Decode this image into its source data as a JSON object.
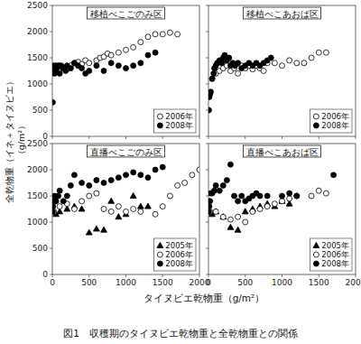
{
  "title": "図1　収穫期のタイヌビエ乾物重と全乾物重との関係",
  "xlabel": "タイヌビエ乾物重（g/m²）",
  "ylabel": [
    "全乾物重（イネ＋タイヌビエ）",
    "（g/m²）"
  ],
  "chart_data": [
    {
      "type": "scatter",
      "title": "移植べこごのみ区",
      "xlim": [
        0,
        2000
      ],
      "ylim": [
        0,
        2500
      ],
      "xticks": [
        0,
        500,
        1000,
        1500,
        2000
      ],
      "yticks": [
        0,
        500,
        1000,
        1500,
        2000,
        2500
      ],
      "tick_labels": "y",
      "legend": "lower right",
      "series": [
        {
          "name": "2006年",
          "marker": "circle",
          "color": "white",
          "x": [
            50,
            80,
            100,
            150,
            200,
            250,
            300,
            350,
            400,
            450,
            500,
            600,
            650,
            700,
            750,
            800,
            900,
            1000,
            1100,
            1200,
            1300,
            1400,
            1500,
            1600,
            1700
          ],
          "values": [
            1300,
            1250,
            1350,
            1300,
            1280,
            1350,
            1400,
            1420,
            1380,
            1450,
            1400,
            1450,
            1500,
            1520,
            1580,
            1550,
            1600,
            1650,
            1700,
            1800,
            1900,
            1950,
            1950,
            1980,
            1950
          ]
        },
        {
          "name": "2008年",
          "marker": "circle",
          "color": "black",
          "x": [
            5,
            10,
            20,
            30,
            40,
            50,
            60,
            80,
            100,
            120,
            150,
            180,
            200,
            250,
            300,
            350,
            400,
            450,
            500,
            600,
            700,
            800,
            900,
            1000,
            1100,
            1200,
            1300,
            1400
          ],
          "values": [
            650,
            1300,
            1350,
            1200,
            1250,
            1350,
            1300,
            1350,
            1200,
            1350,
            1300,
            1250,
            1350,
            1300,
            1400,
            1350,
            1300,
            1200,
            1250,
            1350,
            1250,
            1400,
            1350,
            1300,
            1350,
            1400,
            1550,
            1600
          ]
        }
      ]
    },
    {
      "type": "scatter",
      "title": "移植べこあおば区",
      "xlim": [
        0,
        2000
      ],
      "ylim": [
        0,
        2500
      ],
      "xticks": [
        0,
        500,
        1000,
        1500,
        2000
      ],
      "yticks": [
        0,
        500,
        1000,
        1500,
        2000,
        2500
      ],
      "tick_labels": false,
      "legend": "lower right",
      "series": [
        {
          "name": "2006年",
          "marker": "circle",
          "color": "white",
          "x": [
            50,
            100,
            150,
            200,
            250,
            300,
            350,
            400,
            450,
            500,
            550,
            600,
            650,
            700,
            750,
            800,
            900,
            1000,
            1100,
            1200,
            1300,
            1400,
            1500,
            1600
          ],
          "values": [
            1100,
            1200,
            1250,
            1300,
            1350,
            1250,
            1300,
            1200,
            1350,
            1300,
            1350,
            1280,
            1350,
            1300,
            1250,
            1400,
            1400,
            1350,
            1450,
            1400,
            1400,
            1500,
            1600,
            1600
          ]
        },
        {
          "name": "2008年",
          "marker": "circle",
          "color": "black",
          "x": [
            5,
            10,
            20,
            30,
            50,
            70,
            80,
            100,
            120,
            150,
            180,
            200,
            220,
            250,
            280,
            300,
            330,
            360,
            400,
            450,
            500,
            550,
            600,
            650,
            700,
            750,
            800,
            850
          ],
          "values": [
            500,
            750,
            800,
            850,
            1100,
            1200,
            1300,
            1350,
            1400,
            1450,
            1400,
            1500,
            1550,
            1450,
            1500,
            1350,
            1400,
            1350,
            1400,
            1300,
            1350,
            1400,
            1350,
            1400,
            1350,
            1400,
            1450,
            1500
          ]
        }
      ]
    },
    {
      "type": "scatter",
      "title": "直播べこごのみ区",
      "xlim": [
        0,
        2000
      ],
      "ylim": [
        0,
        2500
      ],
      "xticks": [
        0,
        500,
        1000,
        1500,
        2000
      ],
      "yticks": [
        0,
        500,
        1000,
        1500,
        2000,
        2500
      ],
      "tick_labels": true,
      "legend": "lower right",
      "series": [
        {
          "name": "2005年",
          "marker": "triangle",
          "color": "black",
          "x": [
            50,
            100,
            200,
            300,
            400,
            500,
            600,
            700,
            800,
            900,
            1000,
            1100,
            1200,
            1300
          ],
          "values": [
            1150,
            1200,
            1250,
            1300,
            1250,
            800,
            870,
            850,
            1400,
            1100,
            1150,
            1500,
            1300,
            1300
          ]
        },
        {
          "name": "2006年",
          "marker": "circle",
          "color": "white",
          "x": [
            20,
            100,
            200,
            300,
            400,
            500,
            600,
            700,
            800,
            900,
            1000,
            1100,
            1200,
            1400,
            1500,
            1600,
            1700,
            1800,
            1900,
            2000
          ],
          "values": [
            1200,
            1300,
            1350,
            1250,
            1400,
            1500,
            1550,
            1250,
            1200,
            1300,
            1200,
            1250,
            1200,
            1150,
            1300,
            1500,
            1700,
            1750,
            1900,
            2000
          ]
        },
        {
          "name": "2008年",
          "marker": "circle",
          "color": "black",
          "x": [
            5,
            10,
            20,
            30,
            50,
            80,
            100,
            150,
            200,
            250,
            300,
            400,
            500,
            600,
            700,
            800,
            900,
            1000,
            1100,
            1200,
            1300,
            1400,
            1500
          ],
          "values": [
            1200,
            1300,
            1400,
            1500,
            1400,
            1500,
            1600,
            1400,
            1500,
            1700,
            1900,
            1750,
            1700,
            1800,
            1750,
            1800,
            1850,
            1900,
            1950,
            1900,
            1850,
            2000,
            2050
          ]
        }
      ]
    },
    {
      "type": "scatter",
      "title": "直播べこあおば区",
      "xlim": [
        0,
        2000
      ],
      "ylim": [
        0,
        2500
      ],
      "xticks": [
        0,
        500,
        1000,
        1500,
        2000
      ],
      "yticks": [
        0,
        500,
        1000,
        1500,
        2000,
        2500
      ],
      "tick_labels": "x",
      "legend": "lower right",
      "series": [
        {
          "name": "2005年",
          "marker": "triangle",
          "color": "black",
          "x": [
            50,
            100,
            200,
            300,
            400,
            500,
            600,
            700,
            800,
            900,
            1000,
            1100
          ],
          "values": [
            1150,
            1200,
            1100,
            900,
            850,
            1200,
            1250,
            1300,
            1350,
            1300,
            1400,
            1350
          ]
        },
        {
          "name": "2006年",
          "marker": "circle",
          "color": "white",
          "x": [
            20,
            100,
            200,
            300,
            400,
            500,
            600,
            700,
            800,
            900,
            1000,
            1100,
            1200,
            1400,
            1500,
            1600
          ],
          "values": [
            1200,
            1200,
            1100,
            1050,
            1100,
            1000,
            1200,
            1250,
            1300,
            1350,
            1400,
            1450,
            1500,
            1500,
            1600,
            1550
          ]
        },
        {
          "name": "2008年",
          "marker": "circle",
          "color": "black",
          "x": [
            5,
            10,
            20,
            30,
            50,
            80,
            100,
            150,
            200,
            250,
            300,
            350,
            400,
            450,
            500,
            550,
            600,
            650,
            700,
            800,
            1000,
            1100,
            1200,
            1700
          ],
          "values": [
            1200,
            1300,
            1400,
            1550,
            1550,
            1600,
            1700,
            1600,
            1700,
            1800,
            2100,
            1500,
            1400,
            1500,
            1400,
            1450,
            1500,
            1550,
            1500,
            1500,
            1500,
            1550,
            1500,
            1900
          ]
        }
      ]
    }
  ]
}
